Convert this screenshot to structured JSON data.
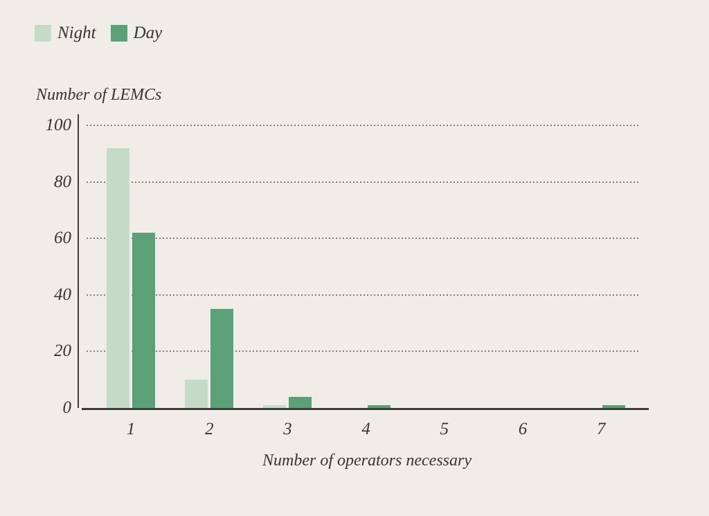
{
  "legend": {
    "items": [
      {
        "label": "Night",
        "color": "#c5dbc9"
      },
      {
        "label": "Day",
        "color": "#5ba077"
      }
    ]
  },
  "chart_data": {
    "type": "bar",
    "title": "",
    "ylabel": "Number of LEMCs",
    "xlabel": "Number of operators necessary",
    "categories": [
      "1",
      "2",
      "3",
      "4",
      "5",
      "6",
      "7"
    ],
    "series": [
      {
        "name": "Night",
        "color": "#c5dbc9",
        "values": [
          92,
          10,
          1,
          0,
          0,
          0,
          0
        ]
      },
      {
        "name": "Day",
        "color": "#5ba077",
        "values": [
          62,
          35,
          4,
          1,
          0,
          0,
          1
        ]
      }
    ],
    "yticks": [
      0,
      20,
      40,
      60,
      80,
      100
    ],
    "ylim": [
      0,
      100
    ],
    "grid": "horizontal-dotted",
    "legend_position": "top-left"
  },
  "colors": {
    "background": "#f0ece8",
    "axis": "#3f3d3b",
    "text": "#38342f",
    "grid": "#7f7b77"
  }
}
